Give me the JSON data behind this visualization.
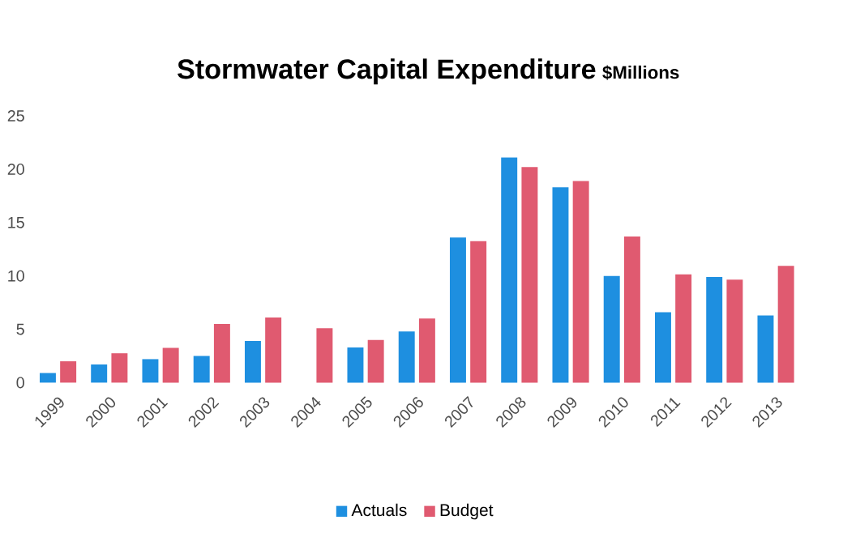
{
  "chart_data": {
    "type": "bar",
    "title": "Stormwater Capital Expenditure",
    "subtitle": "$Millions",
    "categories": [
      "1999",
      "2000",
      "2001",
      "2002",
      "2003",
      "2004",
      "2005",
      "2006",
      "2007",
      "2008",
      "2009",
      "2010",
      "2011",
      "2012",
      "2013"
    ],
    "series": [
      {
        "name": "Actuals",
        "color": "#1e8fe0",
        "values": [
          0.9,
          1.7,
          2.2,
          2.5,
          3.9,
          null,
          3.3,
          4.8,
          13.6,
          21.1,
          18.3,
          10.0,
          6.6,
          9.9,
          6.3
        ]
      },
      {
        "name": "Budget",
        "color": "#e05a70",
        "values": [
          2.0,
          2.75,
          3.25,
          5.5,
          6.1,
          5.1,
          4.0,
          6.0,
          13.25,
          20.2,
          18.9,
          13.7,
          10.15,
          9.65,
          10.95
        ]
      }
    ],
    "ylim": [
      0,
      25
    ],
    "yticks": [
      0,
      5,
      10,
      15,
      20,
      25
    ],
    "grid": false,
    "legend": "bottom"
  }
}
